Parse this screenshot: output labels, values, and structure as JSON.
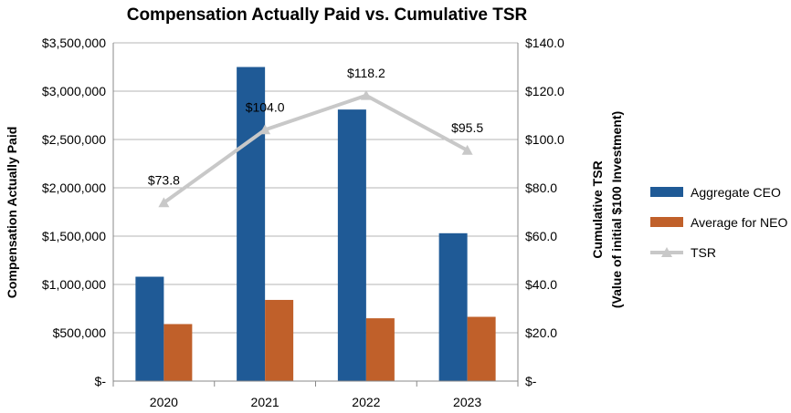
{
  "chart_data": {
    "type": "bar",
    "title": "Compensation Actually Paid vs. Cumulative TSR",
    "categories": [
      "2020",
      "2021",
      "2022",
      "2023"
    ],
    "ylabel": "Compensation Actually Paid",
    "y2label_line1": "Cumulative TSR",
    "y2label_line2": "(Value of initial $100 Investment)",
    "ylim": [
      0,
      3500000
    ],
    "y2lim": [
      0,
      140
    ],
    "y_ticks": [
      "$-",
      "$500,000",
      "$1,000,000",
      "$1,500,000",
      "$2,000,000",
      "$2,500,000",
      "$3,000,000",
      "$3,500,000"
    ],
    "y2_ticks": [
      "$-",
      "$20.0",
      "$40.0",
      "$60.0",
      "$80.0",
      "$100.0",
      "$120.0",
      "$140.0"
    ],
    "grid": true,
    "legend_position": "right",
    "series": [
      {
        "name": "Aggregate CEO",
        "kind": "bar",
        "axis": "left",
        "color": "#1f5a96",
        "values": [
          1080000,
          3250000,
          2810000,
          1530000
        ]
      },
      {
        "name": "Average for NEO",
        "kind": "bar",
        "axis": "left",
        "color": "#c0602a",
        "values": [
          590000,
          840000,
          650000,
          665000
        ]
      },
      {
        "name": "TSR",
        "kind": "line",
        "axis": "right",
        "color": "#c8c8c8",
        "values": [
          73.8,
          104.0,
          118.2,
          95.5
        ],
        "labels": [
          "$73.8",
          "$104.0",
          "$118.2",
          "$95.5"
        ]
      }
    ]
  }
}
